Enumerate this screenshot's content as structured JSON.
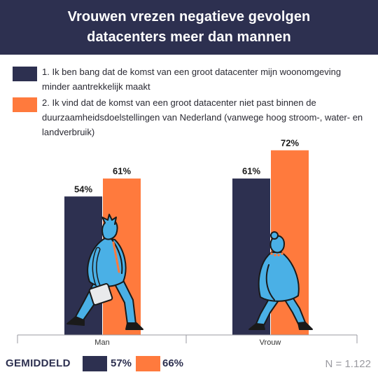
{
  "header": {
    "title_line1": "Vrouwen vrezen negatieve gevolgen",
    "title_line2": "datacenters meer dan mannen"
  },
  "legend": [
    {
      "text": "1. Ik ben bang dat de komst van een groot datacenter mijn woonomgeving minder aantrekkelijk maakt",
      "color": "#2d3050"
    },
    {
      "text": "2. Ik vind dat de komst van een groot datacenter niet past binnen de duurzaamheidsdoelstellingen van Nederland (vanwege hoog stroom-, water- en landverbruik)",
      "color": "#ff7a3d"
    }
  ],
  "chart_data": {
    "type": "bar",
    "categories": [
      "Man",
      "Vrouw"
    ],
    "series": [
      {
        "values": [
          54,
          61
        ],
        "labels": [
          "54%",
          "61%"
        ],
        "color": "#2d3050"
      },
      {
        "values": [
          61,
          72
        ],
        "labels": [
          "61%",
          "72%"
        ],
        "color": "#ff7a3d"
      }
    ],
    "ylim": [
      0,
      100
    ],
    "grid": false
  },
  "footer": {
    "average_label": "GEMIDDELD",
    "averages": [
      {
        "value": "57%",
        "color": "#2d3050"
      },
      {
        "value": "66%",
        "color": "#ff7a3d"
      }
    ],
    "sample_size": "N = 1.122"
  },
  "icons": [
    "walking-man-illustration",
    "walking-woman-illustration"
  ]
}
